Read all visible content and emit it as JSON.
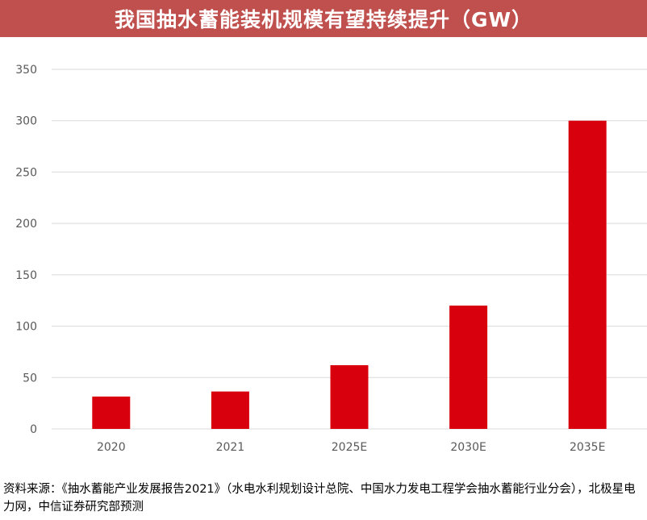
{
  "title": "我国抽水蓄能装机规模有望持续提升（GW）",
  "source": "资料来源：《抽水蓄能产业发展报告2021》（水电水利规划设计总院、中国水力发电工程学会抽水蓄能行业分会），北极星电力网，中信证券研究部预测",
  "colors": {
    "title_bg": "#C0504D",
    "bar": "#D9000D",
    "grid": "#D9D9D9",
    "tick_text": "#595959"
  },
  "chart_data": {
    "type": "bar",
    "title": "我国抽水蓄能装机规模有望持续提升（GW）",
    "categories": [
      "2020",
      "2021",
      "2025E",
      "2030E",
      "2035E"
    ],
    "values": [
      31.5,
      36.4,
      62,
      120,
      300
    ],
    "ylim": [
      0,
      350
    ],
    "yticks": [
      0,
      50,
      100,
      150,
      200,
      250,
      300,
      350
    ],
    "grid": true,
    "legend": "none"
  }
}
